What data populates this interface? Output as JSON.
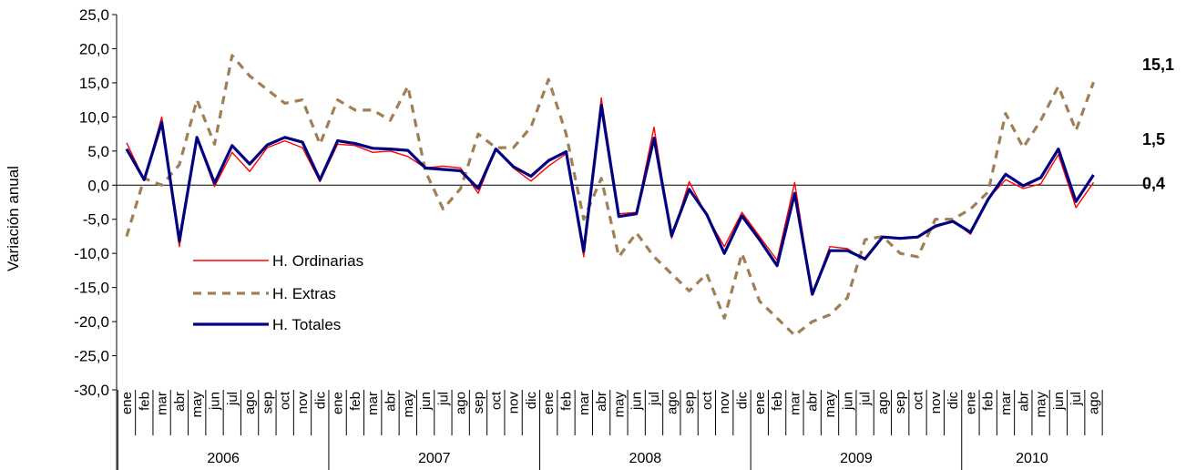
{
  "chart_data": {
    "type": "line",
    "ylabel": "Variación anual",
    "ylim": [
      -30,
      25
    ],
    "yticks": [
      "-30,0",
      "-25,0",
      "-20,0",
      "-15,0",
      "-10,0",
      "-5,0",
      "0,0",
      "5,0",
      "10,0",
      "15,0",
      "20,0",
      "25,0"
    ],
    "ytick_values": [
      -30,
      -25,
      -20,
      -15,
      -10,
      -5,
      0,
      5,
      10,
      15,
      20,
      25
    ],
    "months": [
      "ene",
      "feb",
      "mar",
      "abr",
      "may",
      "jun",
      "jul",
      "ago",
      "sep",
      "oct",
      "nov",
      "dic"
    ],
    "months_2010": [
      "ene",
      "feb",
      "mar",
      "abr",
      "may",
      "jun",
      "jul",
      "ago"
    ],
    "years": [
      "2006",
      "2007",
      "2008",
      "2009",
      "2010"
    ],
    "legend_position": "left-middle",
    "series": [
      {
        "name": "H. Ordinarias",
        "color": "#ff0000",
        "style": "thin",
        "values": [
          6.2,
          0.8,
          10.0,
          -9.0,
          6.8,
          -0.2,
          4.8,
          2.0,
          5.5,
          6.5,
          5.5,
          0.5,
          6.0,
          5.8,
          4.8,
          5.0,
          4.2,
          2.5,
          2.8,
          2.5,
          -1.2,
          5.3,
          2.5,
          0.6,
          2.8,
          4.6,
          -10.5,
          12.8,
          -4.2,
          -4.0,
          8.5,
          -7.8,
          0.5,
          -4.5,
          -9.0,
          -4.0,
          -7.5,
          -11.0,
          0.4,
          -16.0,
          -9.0,
          -9.3,
          -11.0,
          -7.7,
          -7.8,
          -7.7,
          -6.2,
          -5.2,
          -7.2,
          -2.0,
          0.8,
          -0.5,
          0.2,
          4.5,
          -3.3,
          0.4
        ],
        "end_label": "0,4"
      },
      {
        "name": "H. Extras",
        "color": "#a07f55",
        "style": "dashed",
        "values": [
          -7.5,
          1.0,
          0.0,
          3.0,
          12.5,
          6.0,
          19.0,
          16.0,
          14.0,
          12.0,
          12.5,
          6.0,
          12.5,
          11.0,
          11.0,
          9.5,
          14.5,
          2.0,
          -3.5,
          -0.5,
          7.5,
          5.5,
          5.5,
          8.5,
          15.5,
          7.5,
          -5.0,
          1.0,
          -10.5,
          -7.0,
          -10.5,
          -13.0,
          -15.5,
          -13.0,
          -19.5,
          -10.0,
          -17.0,
          -19.5,
          -22.0,
          -20.0,
          -19.0,
          -16.5,
          -8.0,
          -7.5,
          -10.0,
          -10.5,
          -5.0,
          -5.0,
          -3.5,
          -1.0,
          10.5,
          5.5,
          9.5,
          14.5,
          8.0,
          15.1
        ],
        "end_label": "15,1"
      },
      {
        "name": "H. Totales",
        "color": "#000080",
        "style": "thick",
        "values": [
          5.3,
          0.8,
          9.2,
          -8.2,
          7.0,
          0.3,
          5.8,
          3.1,
          5.9,
          7.0,
          6.3,
          0.8,
          6.5,
          6.1,
          5.4,
          5.3,
          5.1,
          2.5,
          2.3,
          2.1,
          -0.5,
          5.3,
          2.7,
          1.3,
          3.6,
          4.9,
          -9.7,
          11.7,
          -4.6,
          -4.2,
          6.9,
          -7.4,
          -0.6,
          -4.3,
          -10.0,
          -4.5,
          -8.0,
          -11.8,
          -1.2,
          -16.0,
          -9.6,
          -9.6,
          -10.8,
          -7.6,
          -7.8,
          -7.6,
          -6.0,
          -5.3,
          -6.9,
          -2.1,
          1.6,
          -0.1,
          1.1,
          5.3,
          -2.4,
          1.5
        ],
        "end_label": "1,5"
      }
    ],
    "end_label_colors": {
      "H. Ordinarias": "#ff0000",
      "H. Extras": "#800000",
      "H. Totales": "#0000ff"
    }
  }
}
